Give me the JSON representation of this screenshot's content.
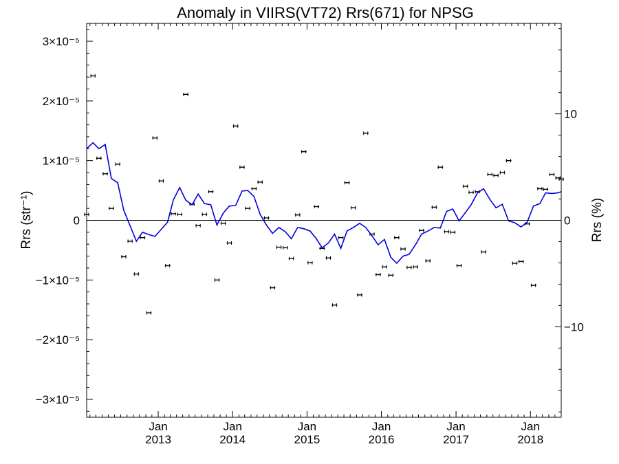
{
  "chart_data": {
    "type": "scatter",
    "title": "Anomaly in VIIRS(VT72) Rrs(671) for NPSG",
    "ylabel": "Rrs (str⁻¹)",
    "y2label": "Rrs (%)",
    "xlim": [
      "2012-01-16",
      "2018-06-01"
    ],
    "ylim": [
      -3.3e-05,
      3.3e-05
    ],
    "y2lim": [
      -18.5,
      18.5
    ],
    "grid": false,
    "zero_line": true,
    "x_ticks": [
      {
        "date": "2013-01-01",
        "month": "Jan",
        "year": "2013"
      },
      {
        "date": "2014-01-01",
        "month": "Jan",
        "year": "2014"
      },
      {
        "date": "2015-01-01",
        "month": "Jan",
        "year": "2015"
      },
      {
        "date": "2016-01-01",
        "month": "Jan",
        "year": "2016"
      },
      {
        "date": "2017-01-01",
        "month": "Jan",
        "year": "2017"
      },
      {
        "date": "2018-01-01",
        "month": "Jan",
        "year": "2018"
      }
    ],
    "y_ticks": [
      {
        "value": 3e-05,
        "label": "3×10⁻⁵"
      },
      {
        "value": 2e-05,
        "label": "2×10⁻⁵"
      },
      {
        "value": 1e-05,
        "label": "1×10⁻⁵"
      },
      {
        "value": 0,
        "label": "0"
      },
      {
        "value": -1e-05,
        "label": "−1×10⁻⁵"
      },
      {
        "value": -2e-05,
        "label": "−2×10⁻⁵"
      },
      {
        "value": -3e-05,
        "label": "−3×10⁻⁵"
      }
    ],
    "y2_ticks": [
      {
        "value": 10,
        "label": "10"
      },
      {
        "value": 0,
        "label": "0"
      },
      {
        "value": -10,
        "label": "−10"
      }
    ],
    "series": [
      {
        "type": "scatter",
        "marker": "errorbar",
        "color": "#000000",
        "x": [
          "2012-01-16",
          "2012-02-16",
          "2012-03-16",
          "2012-04-16",
          "2012-05-16",
          "2012-06-16",
          "2012-07-16",
          "2012-08-16",
          "2012-09-16",
          "2012-10-16",
          "2012-11-16",
          "2012-12-16",
          "2013-01-16",
          "2013-02-16",
          "2013-03-16",
          "2013-04-16",
          "2013-05-16",
          "2013-06-16",
          "2013-07-16",
          "2013-08-16",
          "2013-09-16",
          "2013-10-16",
          "2013-11-16",
          "2013-12-16",
          "2014-01-16",
          "2014-02-16",
          "2014-03-16",
          "2014-04-16",
          "2014-05-16",
          "2014-06-16",
          "2014-07-16",
          "2014-08-16",
          "2014-09-16",
          "2014-10-16",
          "2014-11-16",
          "2014-12-16",
          "2015-01-16",
          "2015-02-16",
          "2015-03-16",
          "2015-04-16",
          "2015-05-16",
          "2015-06-16",
          "2015-07-16",
          "2015-08-16",
          "2015-09-16",
          "2015-10-16",
          "2015-11-16",
          "2015-12-16",
          "2016-01-16",
          "2016-02-16",
          "2016-03-16",
          "2016-04-16",
          "2016-05-16",
          "2016-06-16",
          "2016-07-16",
          "2016-08-16",
          "2016-09-16",
          "2016-10-16",
          "2016-11-16",
          "2016-12-16",
          "2017-01-16",
          "2017-02-16",
          "2017-03-16",
          "2017-04-16",
          "2017-05-16",
          "2017-06-16",
          "2017-07-16",
          "2017-08-16",
          "2017-09-16",
          "2017-10-16",
          "2017-11-16",
          "2017-12-16",
          "2018-01-16",
          "2018-02-16",
          "2018-03-16",
          "2018-04-16",
          "2018-05-16",
          "2018-06-01"
        ],
        "y": [
          1e-06,
          2.42e-05,
          1.04e-05,
          7.8e-06,
          2e-06,
          9.4e-06,
          -6.1e-06,
          -3.5e-06,
          -9e-06,
          -2.9e-06,
          -1.55e-05,
          1.38e-05,
          6.6e-06,
          -7.6e-06,
          1.1e-06,
          1e-06,
          2.11e-05,
          2.7e-06,
          -9e-07,
          1e-06,
          4.8e-06,
          -1e-05,
          -5e-07,
          -3.8e-06,
          1.58e-05,
          8.9e-06,
          2e-06,
          5.3e-06,
          6.4e-06,
          4e-07,
          -1.13e-05,
          -4.5e-06,
          -4.6e-06,
          -6.4e-06,
          9e-07,
          1.15e-05,
          -7.1e-06,
          2.3e-06,
          -4.7e-06,
          -6.3e-06,
          -1.42e-05,
          -2.9e-06,
          6.3e-06,
          2.1e-06,
          -1.25e-05,
          1.46e-05,
          -2.3e-06,
          -9.1e-06,
          -7.8e-06,
          -9.2e-06,
          -2.9e-06,
          -4.8e-06,
          -7.9e-06,
          -7.8e-06,
          -1.7e-06,
          -6.8e-06,
          2.2e-06,
          8.9e-06,
          -1.9e-06,
          -2e-06,
          -7.6e-06,
          5.7e-06,
          4.7e-06,
          4.8e-06,
          -5.3e-06,
          7.7e-06,
          7.5e-06,
          8e-06,
          1e-05,
          -7.2e-06,
          -6.9e-06,
          -6e-07,
          -1.09e-05,
          5.3e-06,
          5.2e-06,
          7.7e-06,
          7.1e-06,
          6.9e-06
        ]
      },
      {
        "type": "line",
        "color": "#0000dd",
        "x": [
          "2012-01-16",
          "2012-02-16",
          "2012-03-16",
          "2012-04-16",
          "2012-05-16",
          "2012-06-16",
          "2012-07-16",
          "2012-08-16",
          "2012-09-16",
          "2012-10-16",
          "2012-11-16",
          "2012-12-16",
          "2013-01-16",
          "2013-02-16",
          "2013-03-16",
          "2013-04-16",
          "2013-05-16",
          "2013-06-16",
          "2013-07-16",
          "2013-08-16",
          "2013-09-16",
          "2013-10-16",
          "2013-11-16",
          "2013-12-16",
          "2014-01-16",
          "2014-02-16",
          "2014-03-16",
          "2014-04-16",
          "2014-05-16",
          "2014-06-16",
          "2014-07-16",
          "2014-08-16",
          "2014-09-16",
          "2014-10-16",
          "2014-11-16",
          "2014-12-16",
          "2015-01-16",
          "2015-02-16",
          "2015-03-16",
          "2015-04-16",
          "2015-05-16",
          "2015-06-16",
          "2015-07-16",
          "2015-08-16",
          "2015-09-16",
          "2015-10-16",
          "2015-11-16",
          "2015-12-16",
          "2016-01-16",
          "2016-02-16",
          "2016-03-16",
          "2016-04-16",
          "2016-05-16",
          "2016-06-16",
          "2016-07-16",
          "2016-08-16",
          "2016-09-16",
          "2016-10-16",
          "2016-11-16",
          "2016-12-16",
          "2017-01-16",
          "2017-02-16",
          "2017-03-16",
          "2017-04-16",
          "2017-05-16",
          "2017-06-16",
          "2017-07-16",
          "2017-08-16",
          "2017-09-16",
          "2017-10-16",
          "2017-11-16",
          "2017-12-16",
          "2018-01-16",
          "2018-02-16",
          "2018-03-16",
          "2018-04-16",
          "2018-05-16",
          "2018-06-01"
        ],
        "y": [
          1.2e-05,
          1.3e-05,
          1.2e-05,
          1.27e-05,
          7e-06,
          6.3e-06,
          1.7e-06,
          -9e-07,
          -3.5e-06,
          -2e-06,
          -2.4e-06,
          -2.7e-06,
          -1.5e-06,
          -3e-07,
          3.4e-06,
          5.5e-06,
          3.4e-06,
          2.6e-06,
          4.4e-06,
          2.8e-06,
          2.6e-06,
          -8e-07,
          1.2e-06,
          2.4e-06,
          2.5e-06,
          4.9e-06,
          5e-06,
          4e-06,
          1e-06,
          -8e-07,
          -2.2e-06,
          -1.2e-06,
          -1.9e-06,
          -3.1e-06,
          -1.2e-06,
          -1.4e-06,
          -1.8e-06,
          -3.1e-06,
          -4.6e-06,
          -3.8e-06,
          -2.3e-06,
          -4.7e-06,
          -1.8e-06,
          -1.2e-06,
          -5e-07,
          -1.2e-06,
          -2.6e-06,
          -4.1e-06,
          -3.2e-06,
          -6.2e-06,
          -7.2e-06,
          -6e-06,
          -5.7e-06,
          -4.1e-06,
          -2.3e-06,
          -1.8e-06,
          -1.2e-06,
          -1.3e-06,
          1.5e-06,
          1.9e-06,
          -1e-07,
          1.3e-06,
          2.6e-06,
          4.6e-06,
          5.3e-06,
          3.5e-06,
          2.1e-06,
          2.7e-06,
          -1e-07,
          -4e-07,
          -1.1e-06,
          -3e-07,
          2.4e-06,
          2.8e-06,
          4.6e-06,
          4.5e-06,
          4.6e-06,
          4.8e-06
        ]
      }
    ]
  }
}
